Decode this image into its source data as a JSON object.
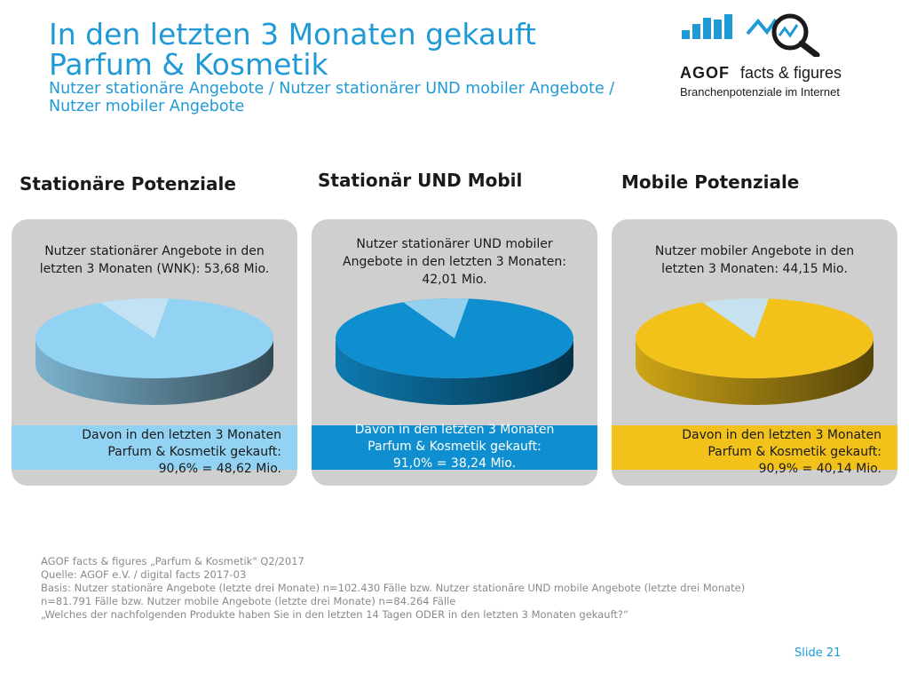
{
  "header": {
    "title_line1": "In den letzten 3 Monaten gekauft",
    "title_line2": "Parfum & Kosmetik",
    "subtitle_line1": "Nutzer stationäre Angebote / Nutzer stationärer UND mobiler Angebote /",
    "subtitle_line2": "Nutzer mobiler Angebote"
  },
  "logo": {
    "brand": "AGOF",
    "product": "facts & figures",
    "tagline": "Branchenpotenziale im Internet"
  },
  "chart_data": [
    {
      "type": "pie",
      "title": "Stationäre Potenziale",
      "base_line1": "Nutzer stationärer Angebote in den",
      "base_line2": "letzten 3 Monaten (WNK): 53,68 Mio.",
      "result_line1": "Davon in den letzten 3 Monaten",
      "result_line2": "Parfum & Kosmetik gekauft:",
      "result_line3": "90,6% = 48,62 Mio.",
      "share_percent": 90.6,
      "colors": {
        "main": "#92d2f3",
        "rest": "#c3e3f4",
        "band": "#92d2f3",
        "band_text": "#1a1a1a"
      }
    },
    {
      "type": "pie",
      "title": "Stationär UND Mobil",
      "base_line1": "Nutzer stationärer UND mobiler",
      "base_line2": "Angebote in den letzten 3 Monaten:",
      "base_line3": "42,01 Mio.",
      "result_line1": "Davon in den letzten 3 Monaten",
      "result_line2": "Parfum & Kosmetik gekauft:",
      "result_line3": "91,0% = 38,24 Mio.",
      "share_percent": 91.0,
      "colors": {
        "main": "#0f8fcf",
        "rest": "#93cfee",
        "band": "#0f8fcf",
        "band_text": "#ffffff"
      }
    },
    {
      "type": "pie",
      "title": "Mobile Potenziale",
      "base_line1": "Nutzer mobiler Angebote in den",
      "base_line2": "letzten 3 Monaten: 44,15 Mio.",
      "result_line1": "Davon in den letzten 3 Monaten",
      "result_line2": "Parfum & Kosmetik gekauft:",
      "result_line3": "90,9% = 40,14 Mio.",
      "share_percent": 90.9,
      "colors": {
        "main": "#f2c21b",
        "rest": "#c6e2f1",
        "band": "#f2c21b",
        "band_text": "#1a1a1a"
      }
    }
  ],
  "footnote": {
    "line1": "AGOF facts & figures „Parfum & Kosmetik\" Q2/2017",
    "line2": "Quelle: AGOF e.V. / digital facts 2017-03",
    "line3": "Basis: Nutzer stationäre Angebote (letzte drei Monate) n=102.430 Fälle bzw. Nutzer stationäre UND mobile Angebote (letzte drei Monate)",
    "line4": "n=81.791 Fälle bzw. Nutzer mobile Angebote (letzte drei Monate) n=84.264 Fälle",
    "line5": "„Welches der nachfolgenden Produkte haben Sie in den letzten 14 Tagen ODER in den letzten 3 Monaten gekauft?“"
  },
  "slide": {
    "label": "Slide 21"
  }
}
